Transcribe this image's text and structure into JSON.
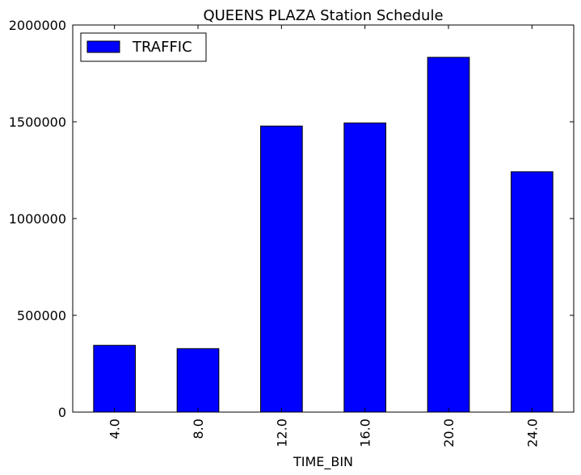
{
  "chart_data": {
    "type": "bar",
    "title": "QUEENS PLAZA Station Schedule",
    "xlabel": "TIME_BIN",
    "ylabel": "",
    "categories": [
      "4.0",
      "8.0",
      "12.0",
      "16.0",
      "20.0",
      "24.0"
    ],
    "series": [
      {
        "name": "TRAFFIC",
        "values": [
          345000,
          328000,
          1478000,
          1494000,
          1833000,
          1242000
        ]
      }
    ],
    "ylim": [
      0,
      2000000
    ],
    "yticks": [
      0,
      500000,
      1000000,
      1500000,
      2000000
    ],
    "grid": false,
    "legend_position": "top-left",
    "bar_color": "#0000ff",
    "edge_color": "#000000"
  }
}
